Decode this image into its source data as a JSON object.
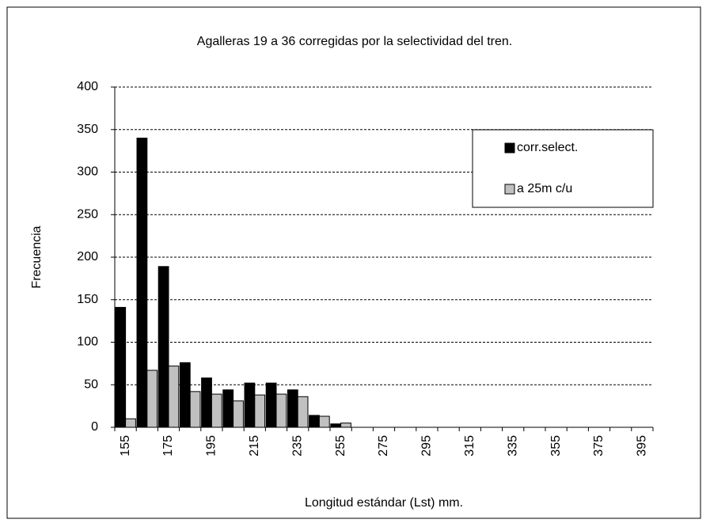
{
  "chart_data": {
    "type": "bar",
    "title": "Agalleras 19 a 36 corregidas por la selectividad del tren.",
    "x_label": "Longitud  estándar  (Lst) mm.",
    "y_label": "Frecuencia",
    "categories": [
      "155",
      null,
      "175",
      null,
      "195",
      null,
      "215",
      null,
      "235",
      null,
      "255",
      null,
      "275",
      null,
      "295",
      null,
      "315",
      null,
      "335",
      null,
      "355",
      null,
      "375",
      null,
      "395"
    ],
    "series": [
      {
        "name": "corr.select.",
        "color": "#000000",
        "values": [
          141,
          340,
          189,
          76,
          58,
          44,
          52,
          52,
          44,
          14,
          4,
          0,
          0,
          0,
          0,
          0,
          0,
          0,
          0,
          0,
          0,
          0,
          0,
          0,
          0
        ]
      },
      {
        "name": "a 25m  c/u",
        "color": "#c0c0c0",
        "values": [
          10,
          67,
          72,
          42,
          39,
          31,
          38,
          39,
          36,
          13,
          5,
          0,
          0,
          0,
          0,
          0,
          0,
          0,
          0,
          0,
          0,
          0,
          0,
          0,
          0
        ]
      }
    ],
    "ylim": [
      0,
      400
    ],
    "yticks": [
      0,
      50,
      100,
      150,
      200,
      250,
      300,
      350,
      400
    ],
    "grid": true,
    "legend": "upper right"
  }
}
